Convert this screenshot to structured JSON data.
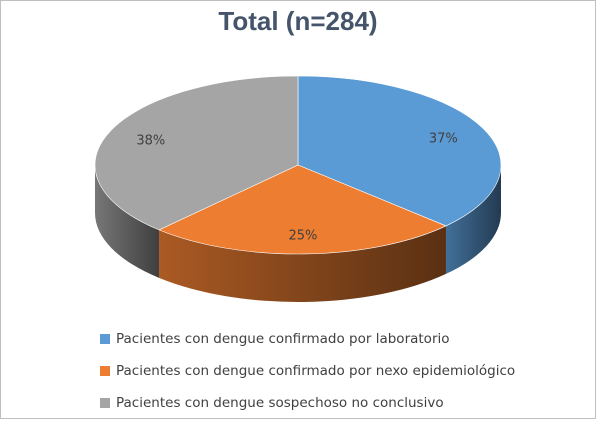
{
  "chart_data": {
    "type": "pie",
    "title": "Total (n=284)",
    "categories": [
      "Pacientes con dengue confirmado por laboratorio",
      "Pacientes con dengue confirmado por nexo epidemiológico",
      "Pacientes con dengue sospechoso no conclusivo"
    ],
    "values": [
      37,
      25,
      38
    ],
    "labels": [
      "37%",
      "25%",
      "38%"
    ],
    "colors": [
      "#5b9bd5",
      "#ed7d31",
      "#a5a5a5"
    ],
    "legend": "bottom",
    "style": "3d"
  }
}
